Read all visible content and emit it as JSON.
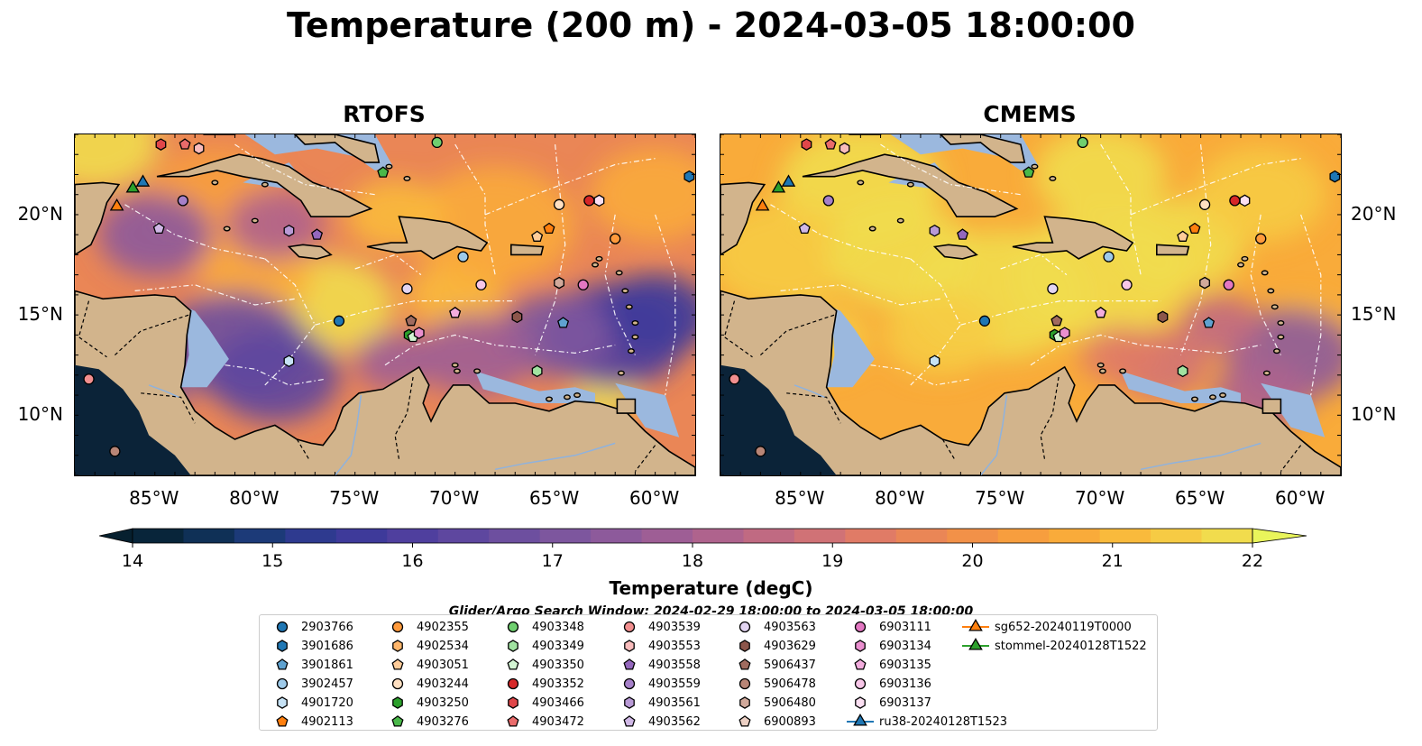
{
  "title": "Temperature (200 m) - 2024-03-05 18:00:00",
  "panels": [
    {
      "title": "RTOFS",
      "scheme": "rtofs"
    },
    {
      "title": "CMEMS",
      "scheme": "cmems"
    }
  ],
  "map": {
    "lon_range": [
      -89,
      -58
    ],
    "lat_range": [
      7,
      24
    ],
    "lon_ticks": [
      {
        "value": -85,
        "label": "85°W"
      },
      {
        "value": -80,
        "label": "80°W"
      },
      {
        "value": -75,
        "label": "75°W"
      },
      {
        "value": -70,
        "label": "70°W"
      },
      {
        "value": -65,
        "label": "65°W"
      },
      {
        "value": -60,
        "label": "60°W"
      }
    ],
    "lat_ticks": [
      {
        "value": 10,
        "label": "10°N"
      },
      {
        "value": 15,
        "label": "15°N"
      },
      {
        "value": 20,
        "label": "20°N"
      }
    ],
    "colors": {
      "land": "#d2b48c",
      "shelf": "#9bb8de",
      "deep_cold": "#0b2338",
      "coast": "#000000",
      "border": "#000000"
    }
  },
  "colorbar": {
    "title": "Temperature (degC)",
    "min": 14,
    "max": 22,
    "step": 0.5,
    "ticks": [
      "14",
      "15",
      "16",
      "17",
      "18",
      "19",
      "20",
      "21",
      "22"
    ],
    "colors": [
      "#08253a",
      "#0f3056",
      "#1c3a78",
      "#2e3a8f",
      "#3e3a9a",
      "#4f3f9e",
      "#5e479f",
      "#6d4f9f",
      "#7d569e",
      "#8d5a9b",
      "#9e5e95",
      "#af638d",
      "#c06a82",
      "#d07276",
      "#e07b66",
      "#ea8656",
      "#f29148",
      "#f79e3e",
      "#f9ab3a",
      "#f9ba3c",
      "#f6cb44",
      "#f1dc4d"
    ],
    "extend_low": "#06202f",
    "extend_high": "#e9f55b"
  },
  "search_window": "Glider/Argo Search Window: 2024-02-29 18:00:00 to 2024-03-05 18:00:00",
  "legend": [
    {
      "label": "2903766",
      "marker": "circle",
      "color": "#1f77b4"
    },
    {
      "label": "3901686",
      "marker": "hexagon",
      "color": "#1f77b4"
    },
    {
      "label": "3901861",
      "marker": "pentagon",
      "color": "#5fa2d0"
    },
    {
      "label": "3902457",
      "marker": "circle",
      "color": "#9ecae9"
    },
    {
      "label": "4901720",
      "marker": "hexagon",
      "color": "#c6e2f5"
    },
    {
      "label": "4902113",
      "marker": "pentagon",
      "color": "#ff7f0e"
    },
    {
      "label": "4902355",
      "marker": "circle",
      "color": "#ff9a3c"
    },
    {
      "label": "4902534",
      "marker": "hexagon",
      "color": "#ffb66b"
    },
    {
      "label": "4903051",
      "marker": "pentagon",
      "color": "#ffcc99"
    },
    {
      "label": "4903244",
      "marker": "circle",
      "color": "#ffe0c2"
    },
    {
      "label": "4903250",
      "marker": "hexagon",
      "color": "#2ca02c"
    },
    {
      "label": "4903276",
      "marker": "pentagon",
      "color": "#49b849"
    },
    {
      "label": "4903348",
      "marker": "circle",
      "color": "#6fcf6f"
    },
    {
      "label": "4903349",
      "marker": "hexagon",
      "color": "#a1e3a1"
    },
    {
      "label": "4903350",
      "marker": "pentagon",
      "color": "#d4f5d4"
    },
    {
      "label": "4903352",
      "marker": "circle",
      "color": "#d62728"
    },
    {
      "label": "4903466",
      "marker": "hexagon",
      "color": "#e0474a"
    },
    {
      "label": "4903472",
      "marker": "pentagon",
      "color": "#ea6b6b"
    },
    {
      "label": "4903539",
      "marker": "circle",
      "color": "#f28f8f"
    },
    {
      "label": "4903553",
      "marker": "hexagon",
      "color": "#f9bcbc"
    },
    {
      "label": "4903558",
      "marker": "pentagon",
      "color": "#9467bd"
    },
    {
      "label": "4903559",
      "marker": "circle",
      "color": "#a680c9"
    },
    {
      "label": "4903561",
      "marker": "hexagon",
      "color": "#b99ad6"
    },
    {
      "label": "4903562",
      "marker": "pentagon",
      "color": "#d0b8e6"
    },
    {
      "label": "4903563",
      "marker": "circle",
      "color": "#e3d5f2"
    },
    {
      "label": "4903629",
      "marker": "hexagon",
      "color": "#8c564b"
    },
    {
      "label": "5906437",
      "marker": "pentagon",
      "color": "#a06b5f"
    },
    {
      "label": "5906478",
      "marker": "circle",
      "color": "#b88576"
    },
    {
      "label": "5906480",
      "marker": "hexagon",
      "color": "#d1a99b"
    },
    {
      "label": "6900893",
      "marker": "pentagon",
      "color": "#ecd0c4"
    },
    {
      "label": "6903111",
      "marker": "circle",
      "color": "#e377c2"
    },
    {
      "label": "6903134",
      "marker": "hexagon",
      "color": "#ea8fcf"
    },
    {
      "label": "6903135",
      "marker": "pentagon",
      "color": "#f2acdd"
    },
    {
      "label": "6903136",
      "marker": "circle",
      "color": "#f7c6e8"
    },
    {
      "label": "6903137",
      "marker": "hexagon",
      "color": "#fbdff2"
    },
    {
      "label": "ru38-20240128T1523",
      "marker": "triangle",
      "color": "#1f77b4",
      "line": true
    },
    {
      "label": "sg652-20240119T0000",
      "marker": "triangle",
      "color": "#ff7f0e",
      "line": true
    },
    {
      "label": "stommel-20240128T1522",
      "marker": "triangle",
      "color": "#2ca02c",
      "line": true
    }
  ],
  "floats": [
    {
      "id": "2903766",
      "lon": -75.8,
      "lat": 14.7
    },
    {
      "id": "3901686",
      "lon": -58.3,
      "lat": 21.9
    },
    {
      "id": "3901861",
      "lon": -64.6,
      "lat": 14.6
    },
    {
      "id": "3902457",
      "lon": -69.6,
      "lat": 17.9
    },
    {
      "id": "4901720",
      "lon": -78.3,
      "lat": 12.7
    },
    {
      "id": "4902113",
      "lon": -65.3,
      "lat": 19.3
    },
    {
      "id": "4902355",
      "lon": -62.0,
      "lat": 18.8
    },
    {
      "id": "4903051",
      "lon": -65.9,
      "lat": 18.9
    },
    {
      "id": "4903244",
      "lon": -64.8,
      "lat": 20.5
    },
    {
      "id": "4903250",
      "lon": -72.3,
      "lat": 14.0
    },
    {
      "id": "4903276",
      "lon": -73.6,
      "lat": 22.1
    },
    {
      "id": "4903348",
      "lon": -70.9,
      "lat": 23.6
    },
    {
      "id": "4903349",
      "lon": -65.9,
      "lat": 12.2
    },
    {
      "id": "4903350",
      "lon": -72.1,
      "lat": 13.9
    },
    {
      "id": "4903352",
      "lon": -63.3,
      "lat": 20.7
    },
    {
      "id": "4903466",
      "lon": -84.7,
      "lat": 23.5
    },
    {
      "id": "4903472",
      "lon": -83.5,
      "lat": 23.5
    },
    {
      "id": "4903539",
      "lon": -88.3,
      "lat": 11.8
    },
    {
      "id": "4903553",
      "lon": -82.8,
      "lat": 23.3
    },
    {
      "id": "4903558",
      "lon": -76.9,
      "lat": 19.0
    },
    {
      "id": "4903559",
      "lon": -83.6,
      "lat": 20.7
    },
    {
      "id": "4903561",
      "lon": -78.3,
      "lat": 19.2
    },
    {
      "id": "4903562",
      "lon": -84.8,
      "lat": 19.3
    },
    {
      "id": "4903563",
      "lon": -72.4,
      "lat": 16.3
    },
    {
      "id": "4903629",
      "lon": -66.9,
      "lat": 14.9
    },
    {
      "id": "5906437",
      "lon": -72.2,
      "lat": 14.7
    },
    {
      "id": "5906478",
      "lon": -87.0,
      "lat": 8.2
    },
    {
      "id": "5906480",
      "lon": -64.8,
      "lat": 16.6
    },
    {
      "id": "6900893",
      "lon": -70.0,
      "lat": 15.1
    },
    {
      "id": "6903111",
      "lon": -63.6,
      "lat": 16.5
    },
    {
      "id": "6903134",
      "lon": -71.8,
      "lat": 14.1
    },
    {
      "id": "6903135",
      "lon": -70.0,
      "lat": 15.1
    },
    {
      "id": "6903136",
      "lon": -68.7,
      "lat": 16.5
    },
    {
      "id": "6903137",
      "lon": -62.8,
      "lat": 20.7
    }
  ],
  "gliders": [
    {
      "id": "ru38-20240128T1523",
      "lon": -85.6,
      "lat": 21.6
    },
    {
      "id": "sg652-20240119T0000",
      "lon": -86.9,
      "lat": 20.4
    },
    {
      "id": "stommel-20240128T1522",
      "lon": -86.1,
      "lat": 21.3
    }
  ]
}
